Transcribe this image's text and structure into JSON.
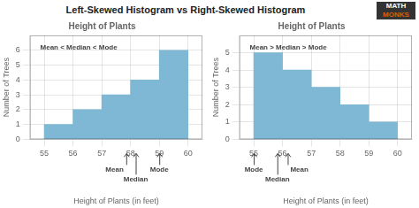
{
  "title": "Left-Skewed Histogram vs Right-Skewed Histogram",
  "annotations": [
    "MATH",
    "MONKS"
  ],
  "chart_data": [
    {
      "type": "histogram",
      "title": "Height of Plants",
      "bins": [
        55,
        56,
        57,
        58,
        59,
        60
      ],
      "values": [
        1,
        2,
        3,
        4,
        6
      ],
      "color": "#7EB8D4",
      "xlim": [
        54.5,
        60.5
      ],
      "xticks": [
        55,
        56,
        57,
        58,
        59,
        60
      ],
      "ylim": [
        0,
        7
      ],
      "yticks": [
        0,
        1,
        2,
        3,
        4,
        5,
        6
      ],
      "xlabel": "Height of Plants (in feet)",
      "ylabel": "Number of Trees",
      "grid": true,
      "annotations": [
        {
          "text": "Mean < Median < Mode"
        },
        {
          "text": "Mean",
          "x": 57.85
        },
        {
          "text": "Median",
          "x": 58.18
        },
        {
          "text": "Mode",
          "x": 59.0
        }
      ]
    },
    {
      "type": "histogram",
      "title": "Height of Plants",
      "bins": [
        55,
        56,
        57,
        58,
        59,
        60
      ],
      "values": [
        5,
        4,
        3,
        2,
        1
      ],
      "color": "#7EB8D4",
      "xlim": [
        54.5,
        60.5
      ],
      "xticks": [
        55,
        56,
        57,
        58,
        59,
        60
      ],
      "ylim": [
        0,
        6
      ],
      "yticks": [
        0,
        1,
        2,
        3,
        4,
        5
      ],
      "xlabel": "Height of Plants (in feet)",
      "ylabel": "Number of Trees",
      "grid": true,
      "annotations": [
        {
          "text": "Mean > Median > Mode"
        },
        {
          "text": "Mode",
          "x": 55.0
        },
        {
          "text": "Median",
          "x": 55.82
        },
        {
          "text": "Mean",
          "x": 56.18
        }
      ]
    }
  ]
}
